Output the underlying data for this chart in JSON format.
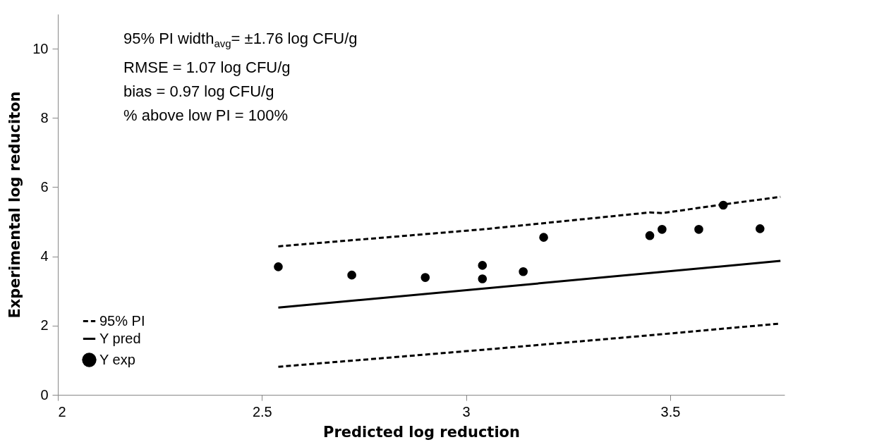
{
  "chart_data": {
    "type": "scatter",
    "xlabel": "Predicted log reduction",
    "ylabel": "Experimental log reduciton",
    "annotations": [
      "95% PI width$_{avg}$= ±1.76 log CFU/g",
      "RMSE = 1.07 log CFU/g",
      "bias = 0.97 log CFU/g",
      "% above low PI = 100%"
    ],
    "xlim": [
      2,
      3.78
    ],
    "xticks": [
      2,
      2.5,
      3,
      3.5
    ],
    "ylim": [
      0,
      11
    ],
    "yticks": [
      0,
      2,
      4,
      6,
      8,
      10
    ],
    "grid": false,
    "legend": "bottom left",
    "series": [
      {
        "name": "95% PI",
        "type": "line",
        "line_style": "dashed",
        "color": "#000000",
        "x": [
          2.54,
          3.04,
          3.45,
          3.48,
          3.63,
          3.77
        ],
        "values": [
          4.29,
          4.78,
          5.27,
          5.25,
          5.5,
          5.72
        ]
      },
      {
        "name": "Y pred",
        "type": "line",
        "line_style": "solid",
        "color": "#000000",
        "x": [
          2.54,
          3.77
        ],
        "values": [
          2.52,
          3.87
        ]
      },
      {
        "type": "line",
        "line_style": "dashed",
        "color": "#000000",
        "x": [
          2.54,
          3.04,
          3.45,
          3.77
        ],
        "values": [
          0.81,
          1.3,
          1.72,
          2.06
        ]
      },
      {
        "name": "Y exp",
        "marker": "circle",
        "color": "#000000",
        "x": [
          2.54,
          2.72,
          2.9,
          3.04,
          3.04,
          3.14,
          3.19,
          3.45,
          3.48,
          3.57,
          3.63,
          3.72
        ],
        "values": [
          3.7,
          3.46,
          3.39,
          3.74,
          3.35,
          3.56,
          4.55,
          4.6,
          4.78,
          4.78,
          5.48,
          4.8
        ]
      }
    ]
  }
}
